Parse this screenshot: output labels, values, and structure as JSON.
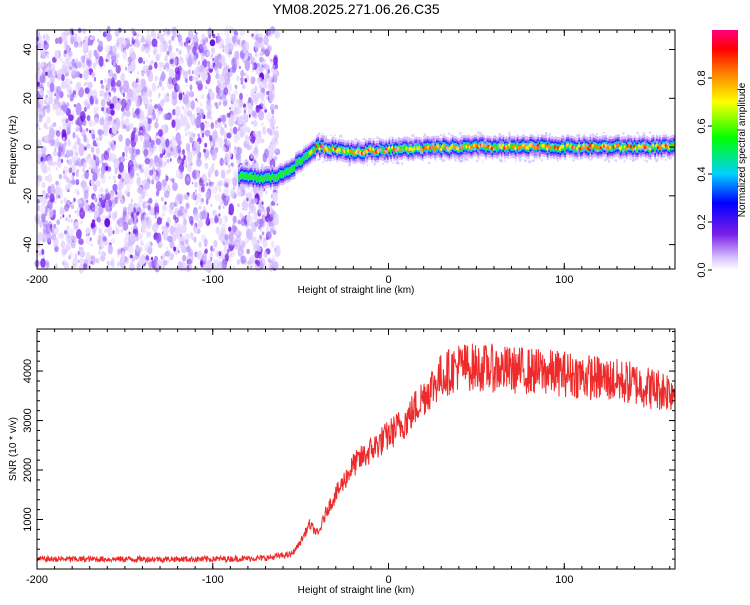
{
  "title": "YM08.2025.271.06.26.C35",
  "chart_data": [
    {
      "type": "heatmap",
      "name": "spectrogram",
      "xlabel": "Height of straight line (km)",
      "ylabel": "Frequency (Hz)",
      "xlim": [
        -200,
        163
      ],
      "ylim": [
        -50,
        48
      ],
      "x_ticks": [
        -200,
        -100,
        0,
        100
      ],
      "y_ticks": [
        -40,
        -20,
        0,
        20,
        40
      ],
      "ridge": {
        "x": [
          -85,
          -72,
          -62,
          -52,
          -44,
          -40,
          -30,
          -20,
          0,
          50,
          100,
          163
        ],
        "y": [
          -12,
          -13,
          -12,
          -7,
          -2,
          0,
          -1,
          -2,
          -1,
          0,
          0,
          0
        ]
      },
      "noise_region_x": [
        -200,
        -63
      ],
      "colorbar": {
        "label": "Normalized spectral amplitude",
        "range": [
          0,
          1
        ],
        "ticks": [
          0.0,
          0.2,
          0.4,
          0.6,
          0.8
        ]
      }
    },
    {
      "type": "line",
      "name": "snr",
      "xlabel": "Height of straight line (km)",
      "ylabel": "SNR (10 * v/v)",
      "xlim": [
        -200,
        163
      ],
      "ylim": [
        0,
        4850
      ],
      "x_ticks": [
        -200,
        -100,
        0,
        100
      ],
      "y_ticks": [
        1000,
        2000,
        3000,
        4000
      ],
      "color": "#ee2a2a",
      "series": [
        {
          "name": "SNR",
          "x": [
            -200,
            -150,
            -100,
            -70,
            -55,
            -50,
            -45,
            -40,
            -35,
            -30,
            -20,
            -10,
            0,
            10,
            20,
            30,
            40,
            60,
            80,
            100,
            120,
            140,
            150,
            163
          ],
          "values": [
            200,
            200,
            200,
            220,
            300,
            550,
            900,
            700,
            1200,
            1500,
            2100,
            2400,
            2700,
            3000,
            3500,
            3900,
            4100,
            4050,
            4000,
            3950,
            3850,
            3750,
            3650,
            3600
          ]
        }
      ]
    }
  ]
}
